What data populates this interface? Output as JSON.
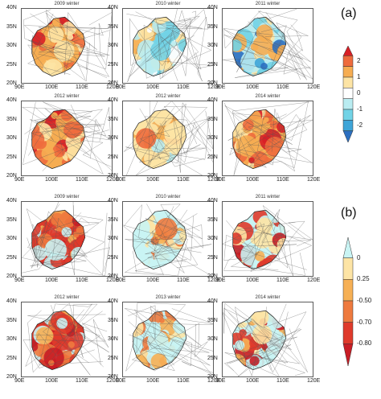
{
  "section_a": {
    "label": "(a)",
    "colorbar_labels": [
      "2",
      "1",
      "0",
      "-1",
      "-2"
    ],
    "colorbar_colors": [
      "#d81f26",
      "#ee6b3d",
      "#f6ad52",
      "#fde4a5",
      "#ffffff",
      "#b9ecf1",
      "#72d3e6",
      "#3ea5d8",
      "#2c6fc0"
    ],
    "panels": [
      {
        "title": "2009 winter",
        "scheme": "warm"
      },
      {
        "title": "2010 winter",
        "scheme": "mixed"
      },
      {
        "title": "2011 winter",
        "scheme": "cool"
      },
      {
        "title": "2012 winter",
        "scheme": "warm"
      },
      {
        "title": "2012 winter",
        "scheme": "mild"
      },
      {
        "title": "2014 winter",
        "scheme": "warm"
      }
    ]
  },
  "section_b": {
    "label": "(b)",
    "colorbar_labels": [
      "0",
      "0.25",
      "-0.50",
      "-0.70",
      "-0.80"
    ],
    "colorbar_colors": [
      "#c9f4f4",
      "#fde4a5",
      "#f6b055",
      "#ee7a3e",
      "#df3a2b",
      "#c81d25"
    ],
    "panels": [
      {
        "title": "2009 winter",
        "scheme": "strong"
      },
      {
        "title": "2010 winter",
        "scheme": "cyan"
      },
      {
        "title": "2011 winter",
        "scheme": "cyan-red"
      },
      {
        "title": "2012 winter",
        "scheme": "strong"
      },
      {
        "title": "2013 winter",
        "scheme": "cyan"
      },
      {
        "title": "2014 winter",
        "scheme": "cyan-red"
      }
    ]
  },
  "axes": {
    "y_ticks": [
      "40N",
      "35N",
      "30N",
      "25N",
      "20N"
    ],
    "x_ticks": [
      "90E",
      "100E",
      "110E",
      "120E"
    ]
  }
}
